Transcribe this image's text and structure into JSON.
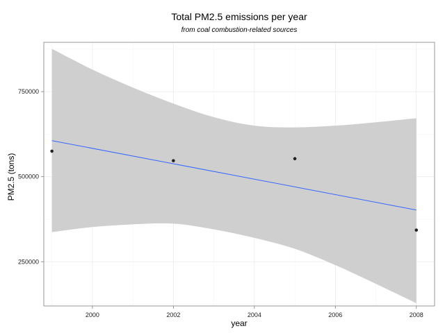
{
  "chart_data": {
    "type": "scatter",
    "title": "Total PM2.5 emissions per year",
    "subtitle": "from coal combustion-related sources",
    "xlabel": "year",
    "ylabel": "PM2.5 (tons)",
    "xlim": [
      1998.8,
      2008.45
    ],
    "ylim": [
      120000,
      895000
    ],
    "x_ticks": [
      2000,
      2002,
      2004,
      2006,
      2008
    ],
    "x_tick_labels": [
      "2000",
      "2002",
      "2004",
      "2006",
      "2008"
    ],
    "y_ticks": [
      250000,
      500000,
      750000
    ],
    "y_tick_labels": [
      "250000",
      "500000",
      "750000"
    ],
    "grid": true,
    "legend": "none",
    "points": [
      {
        "x": 1999,
        "y": 575000
      },
      {
        "x": 2002,
        "y": 547000
      },
      {
        "x": 2005,
        "y": 553000
      },
      {
        "x": 2008,
        "y": 343000
      }
    ],
    "trend_line": {
      "method": "linear",
      "start": {
        "x": 1999,
        "y": 606000
      },
      "end": {
        "x": 2008,
        "y": 402000
      },
      "color": "#3366ff"
    },
    "confidence_band": {
      "x": [
        1999,
        2000,
        2001,
        2002,
        2003,
        2004,
        2005,
        2006,
        2007,
        2008
      ],
      "upper": [
        876000,
        815000,
        762000,
        715000,
        675000,
        650000,
        645000,
        650000,
        660000,
        672000
      ],
      "lower": [
        337000,
        352000,
        360000,
        362000,
        345000,
        320000,
        288000,
        240000,
        185000,
        128000
      ],
      "color": "#cccccc"
    },
    "colors": {
      "point": "#222222",
      "panel_border": "#7f7f7f",
      "grid": "#ebebeb"
    }
  }
}
